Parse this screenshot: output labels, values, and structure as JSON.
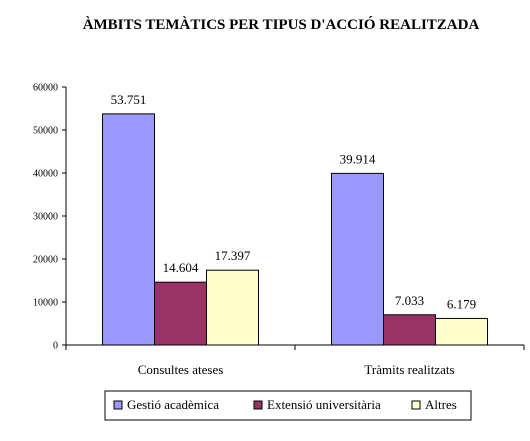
{
  "chart_data": {
    "type": "bar",
    "title": "ÀMBITS TEMÀTICS PER TIPUS D'ACCIÓ REALITZADA",
    "xlabel": "",
    "ylabel": "",
    "categories": [
      "Consultes ateses",
      "Tràmits realitzats"
    ],
    "series": [
      {
        "name": "Gestió acadèmica",
        "values": [
          53751,
          39914
        ],
        "labels": [
          "53.751",
          "39.914"
        ],
        "color": "#9999ff"
      },
      {
        "name": "Extensió universitària",
        "values": [
          14604,
          7033
        ],
        "labels": [
          "14.604",
          "7.033"
        ],
        "color": "#993366"
      },
      {
        "name": "Altres",
        "values": [
          17397,
          6179
        ],
        "labels": [
          "17.397",
          "6.179"
        ],
        "color": "#ffffcc"
      }
    ],
    "ylim": [
      0,
      60000
    ],
    "yticks": [
      "0",
      "10000",
      "20000",
      "30000",
      "40000",
      "50000",
      "60000"
    ],
    "grid": false,
    "legend_position": "bottom"
  }
}
